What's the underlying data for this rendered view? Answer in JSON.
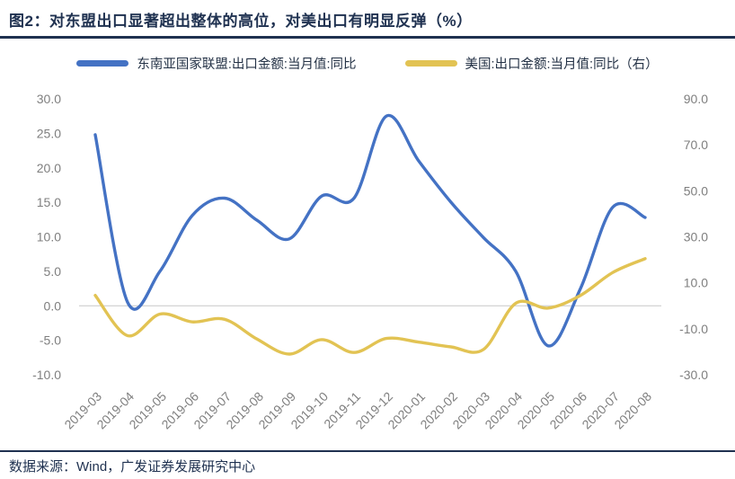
{
  "header": {
    "title": "图2：对东盟出口显著超出整体的高位，对美出口有明显反弹（%）"
  },
  "legend": [
    {
      "label": "东南亚国家联盟:出口金额:当月值:同比",
      "color": "#4472c4"
    },
    {
      "label": "美国:出口金额:当月值:同比（右）",
      "color": "#e2c353"
    }
  ],
  "footer": {
    "source": "数据来源：Wind，广发证券发展研究中心"
  },
  "chart_data": {
    "type": "line",
    "title": "对东盟出口显著超出整体的高位，对美出口有明显反弹（%）",
    "categories": [
      "2019-03",
      "2019-04",
      "2019-05",
      "2019-06",
      "2019-07",
      "2019-08",
      "2019-09",
      "2019-10",
      "2019-11",
      "2019-12",
      "2020-01",
      "2020-02",
      "2020-03",
      "2020-04",
      "2020-05",
      "2020-06",
      "2020-07",
      "2020-08"
    ],
    "series": [
      {
        "name": "东南亚国家联盟:出口金额:当月值:同比",
        "axis": "left",
        "color": "#4472c4",
        "values": [
          24.8,
          0.5,
          5.0,
          13.1,
          15.6,
          12.4,
          9.7,
          15.9,
          15.6,
          27.5,
          21.0,
          15.0,
          9.9,
          5.0,
          -5.8,
          2.5,
          14.3,
          12.8
        ]
      },
      {
        "name": "美国:出口金额:当月值:同比（右）",
        "axis": "right",
        "color": "#e2c353",
        "values": [
          4.5,
          -13.0,
          -3.6,
          -7.0,
          -5.9,
          -14.5,
          -21.0,
          -14.7,
          -20.3,
          -14.2,
          -15.8,
          -17.9,
          -19.0,
          1.1,
          -1.0,
          4.5,
          14.5,
          20.5
        ]
      }
    ],
    "left_axis": {
      "min": -10,
      "max": 30,
      "ticks": [
        "30.0",
        "25.0",
        "20.0",
        "15.0",
        "10.0",
        "5.0",
        "0.0",
        "-5.0",
        "-10.0"
      ]
    },
    "right_axis": {
      "min": -30,
      "max": 90,
      "ticks": [
        "90.0",
        "70.0",
        "50.0",
        "30.0",
        "10.0",
        "-10.0",
        "-30.0"
      ]
    },
    "gridlines": {
      "zero_line_only": true,
      "color": "#d6d6d6"
    },
    "tick_label_color": "#7f7f7f",
    "legend_position": "top",
    "x_label_rotation": -45
  }
}
